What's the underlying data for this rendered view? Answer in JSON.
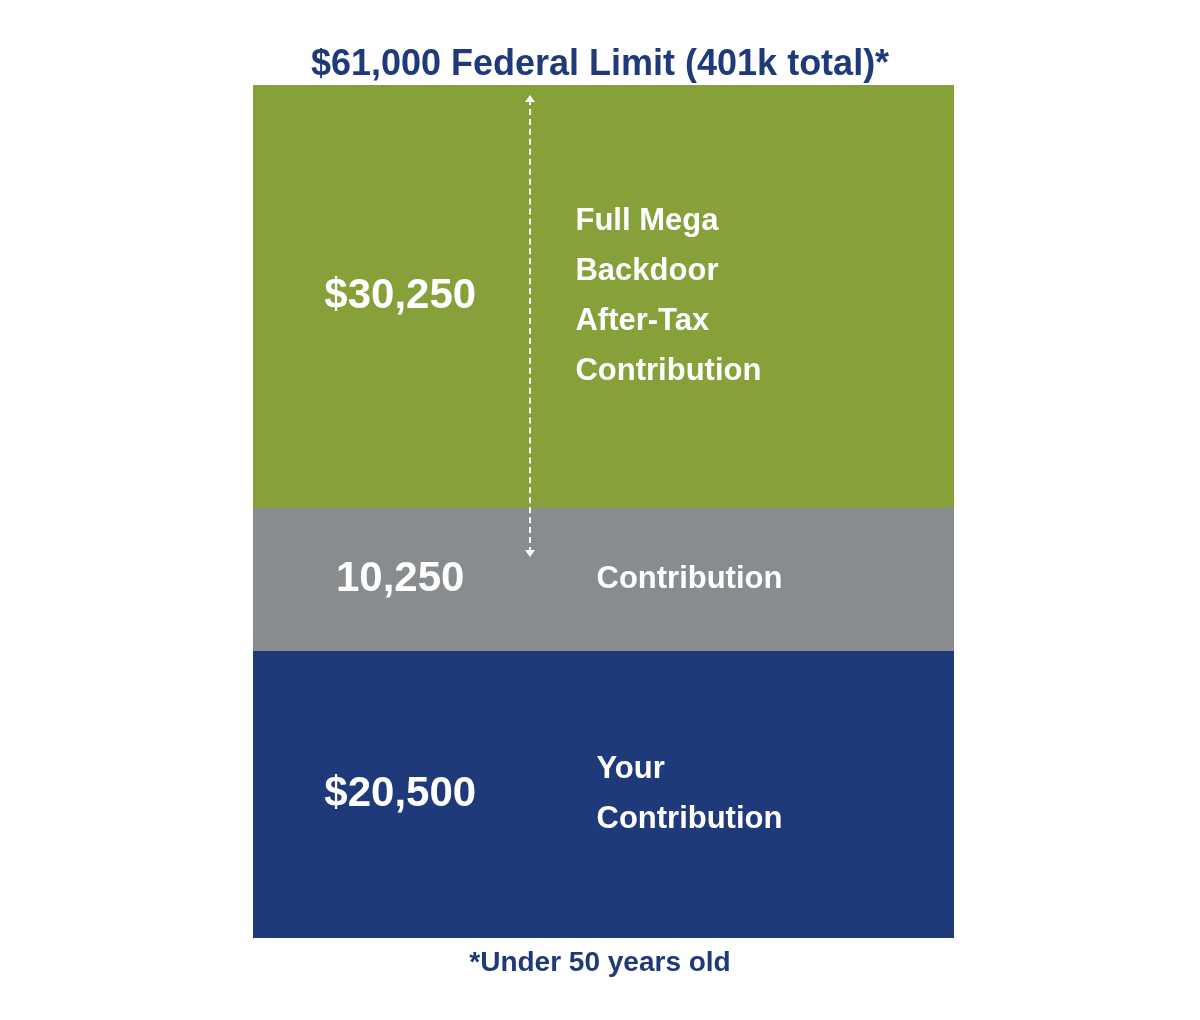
{
  "chart_data": {
    "type": "bar",
    "title": "$61,000 Federal Limit (401k total)*",
    "categories": [
      null
    ],
    "stacked": true,
    "legend": false,
    "tick_labels": false,
    "series": [
      {
        "name": "Your Contribution",
        "color": "#1f3a7a",
        "values": [
          20500
        ],
        "value_labels": [
          "$20,500"
        ]
      },
      {
        "name": "Contribution",
        "color": "#888c8e",
        "values": [
          10250
        ],
        "value_labels": [
          "10,250"
        ]
      },
      {
        "name": "Full Mega Backdoor After-Tax Contribution",
        "color": "#86a03a",
        "values": [
          30250
        ],
        "value_labels": [
          "$30,250"
        ]
      }
    ],
    "annotations": [
      "*Under 50 years old"
    ]
  }
}
